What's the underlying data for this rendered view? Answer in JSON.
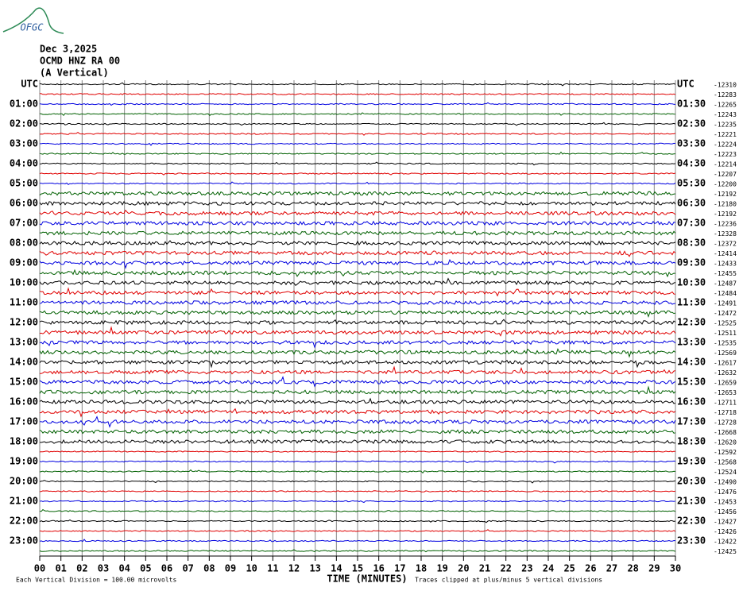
{
  "logo": "OFGC",
  "header": {
    "date": "Dec 3,2025",
    "station": "OCMD HNZ RA 00",
    "component": "(A Vertical)"
  },
  "left_labels": [
    "UTC",
    "01:00",
    "02:00",
    "03:00",
    "04:00",
    "05:00",
    "06:00",
    "07:00",
    "08:00",
    "09:00",
    "10:00",
    "11:00",
    "12:00",
    "13:00",
    "14:00",
    "15:00",
    "16:00",
    "17:00",
    "18:00",
    "19:00",
    "20:00",
    "21:00",
    "22:00",
    "23:00"
  ],
  "right_labels": [
    "UTC",
    "01:30",
    "02:30",
    "03:30",
    "04:30",
    "05:30",
    "06:30",
    "07:30",
    "08:30",
    "09:30",
    "10:30",
    "11:30",
    "12:30",
    "13:30",
    "14:30",
    "15:30",
    "16:30",
    "17:30",
    "18:30",
    "19:30",
    "20:30",
    "21:30",
    "22:30",
    "23:30"
  ],
  "trace_offsets": [
    -12310,
    -12283,
    -12265,
    -12243,
    -12235,
    -12221,
    -12224,
    -12223,
    -12214,
    -12207,
    -12200,
    -12192,
    -12180,
    -12192,
    -12236,
    -12328,
    -12372,
    -12414,
    -12433,
    -12455,
    -12487,
    -12484,
    -12491,
    -12472,
    -12525,
    -12511,
    -12535,
    -12569,
    -12617,
    -12632,
    -12659,
    -12653,
    -12711,
    -12718,
    -12728,
    -12668,
    -12620,
    -12592,
    -12568,
    -12524,
    -12490,
    -12476,
    -12453,
    -12456,
    -12427,
    -12426,
    -12422,
    -12425
  ],
  "trace_colors": [
    "#000000",
    "#e00000",
    "#0000e0",
    "#006000"
  ],
  "x_ticks": [
    "00",
    "01",
    "02",
    "03",
    "04",
    "05",
    "06",
    "07",
    "08",
    "09",
    "10",
    "11",
    "12",
    "13",
    "14",
    "15",
    "16",
    "17",
    "18",
    "19",
    "20",
    "21",
    "22",
    "23",
    "24",
    "25",
    "26",
    "27",
    "28",
    "29",
    "30"
  ],
  "footer": {
    "scale": "Each Vertical Division =  100.00 microvolts",
    "axis": "TIME (MINUTES)",
    "clip": "Traces clipped at plus/minus 5 vertical divisions"
  }
}
